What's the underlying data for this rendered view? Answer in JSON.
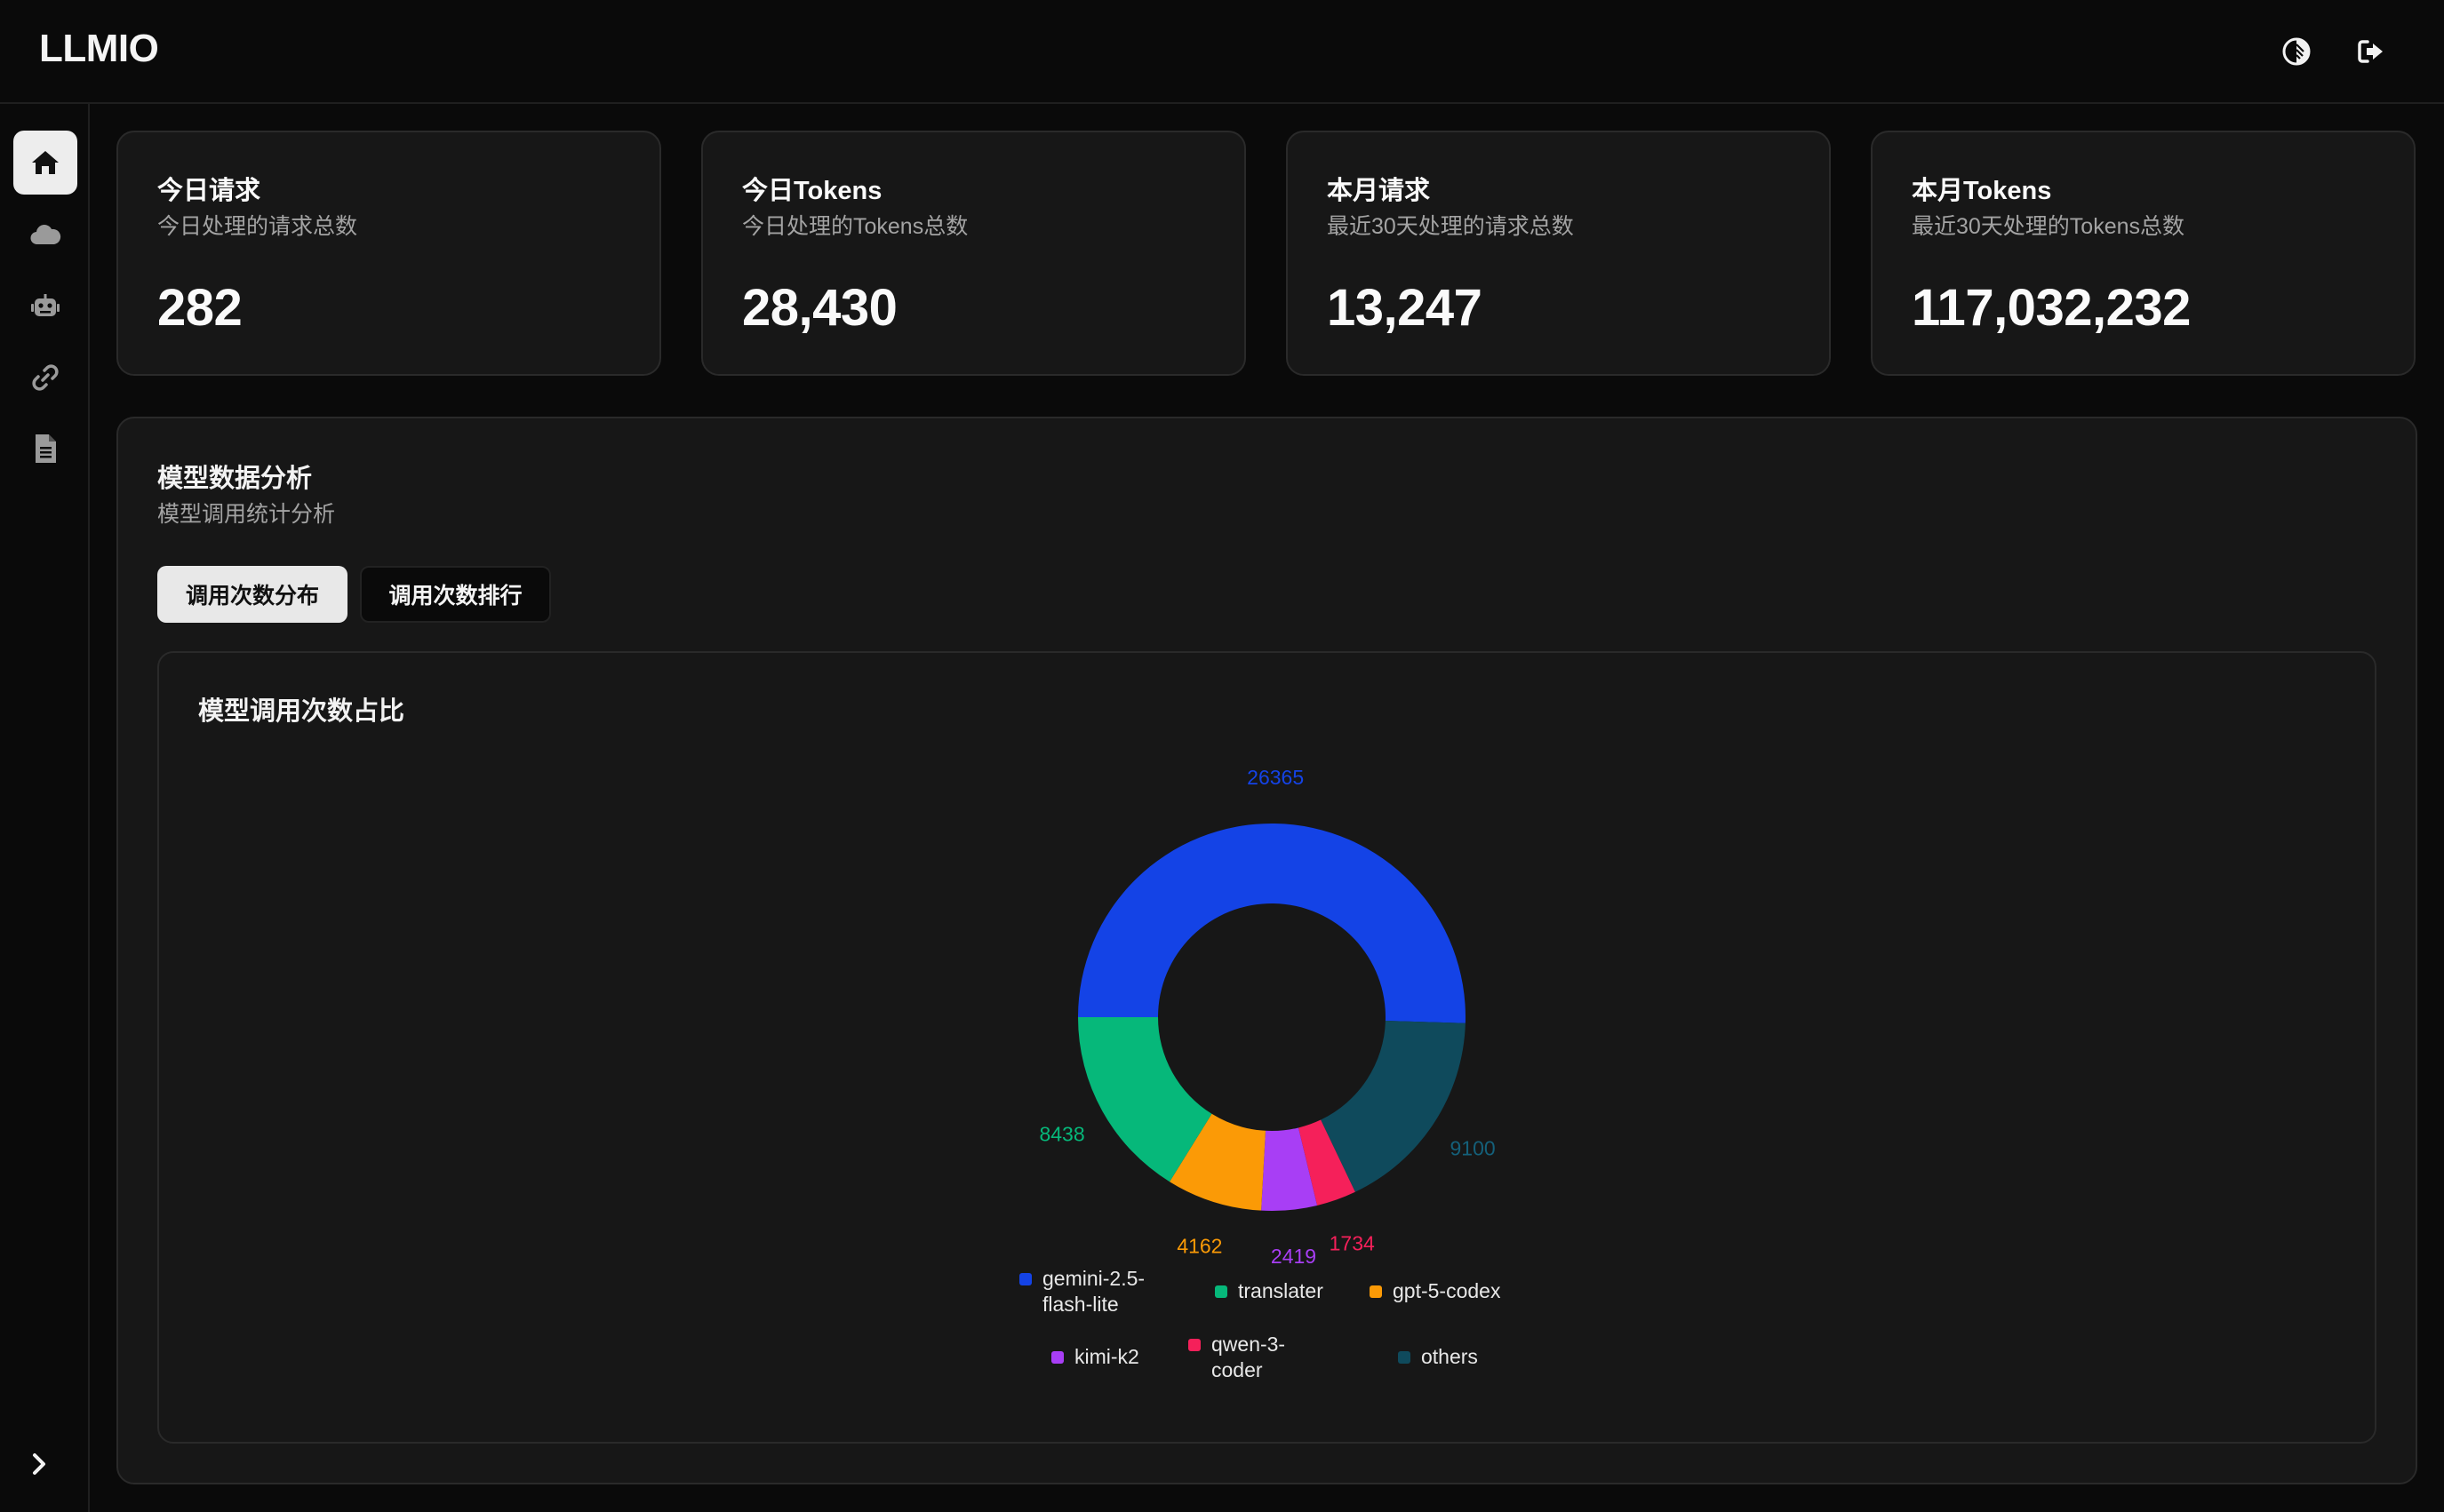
{
  "app": {
    "title": "LLMIO",
    "theme_icon": "theme-toggle-icon",
    "logout_icon": "logout-icon"
  },
  "sidebar": {
    "items": [
      {
        "icon": "home-icon",
        "active": true
      },
      {
        "icon": "cloud-icon",
        "active": false
      },
      {
        "icon": "robot-icon",
        "active": false
      },
      {
        "icon": "link-icon",
        "active": false
      },
      {
        "icon": "document-icon",
        "active": false
      }
    ],
    "collapse_icon": "chevron-right-icon"
  },
  "stats": [
    {
      "title": "今日请求",
      "subtitle": "今日处理的请求总数",
      "value": "282"
    },
    {
      "title": "今日Tokens",
      "subtitle": "今日处理的Tokens总数",
      "value": "28,430"
    },
    {
      "title": "本月请求",
      "subtitle": "最近30天处理的请求总数",
      "value": "13,247"
    },
    {
      "title": "本月Tokens",
      "subtitle": "最近30天处理的Tokens总数",
      "value": "117,032,232"
    }
  ],
  "analysis": {
    "title": "模型数据分析",
    "subtitle": "模型调用统计分析",
    "tabs": [
      {
        "label": "调用次数分布",
        "active": true
      },
      {
        "label": "调用次数排行",
        "active": false
      }
    ]
  },
  "chart_data": {
    "type": "pie",
    "title": "模型调用次数占比",
    "donut": true,
    "labels_shown": [
      "26365",
      "9100",
      "1734",
      "2419",
      "4162",
      "8438"
    ],
    "slices": [
      {
        "name": "gemini-2.5-flash-lite",
        "value": 26365,
        "color": "#1443e6"
      },
      {
        "name": "others",
        "value": 9100,
        "color": "#0f4a5c"
      },
      {
        "name": "qwen-3-coder",
        "value": 1734,
        "color": "#f5205a"
      },
      {
        "name": "kimi-k2",
        "value": 2419,
        "color": "#a83ef5"
      },
      {
        "name": "gpt-5-codex",
        "value": 4162,
        "color": "#fb9a06"
      },
      {
        "name": "translater",
        "value": 8438,
        "color": "#06b87a"
      }
    ],
    "legend": [
      {
        "name": "gemini-2.5-\nflash-lite",
        "color": "#1443e6"
      },
      {
        "name": "translater",
        "color": "#06b87a"
      },
      {
        "name": "gpt-5-codex",
        "color": "#fb9a06"
      },
      {
        "name": "kimi-k2",
        "color": "#a83ef5"
      },
      {
        "name": "qwen-3-\ncoder",
        "color": "#f5205a"
      },
      {
        "name": "others",
        "color": "#0f4a5c"
      }
    ],
    "legend_placement": "bottom"
  }
}
